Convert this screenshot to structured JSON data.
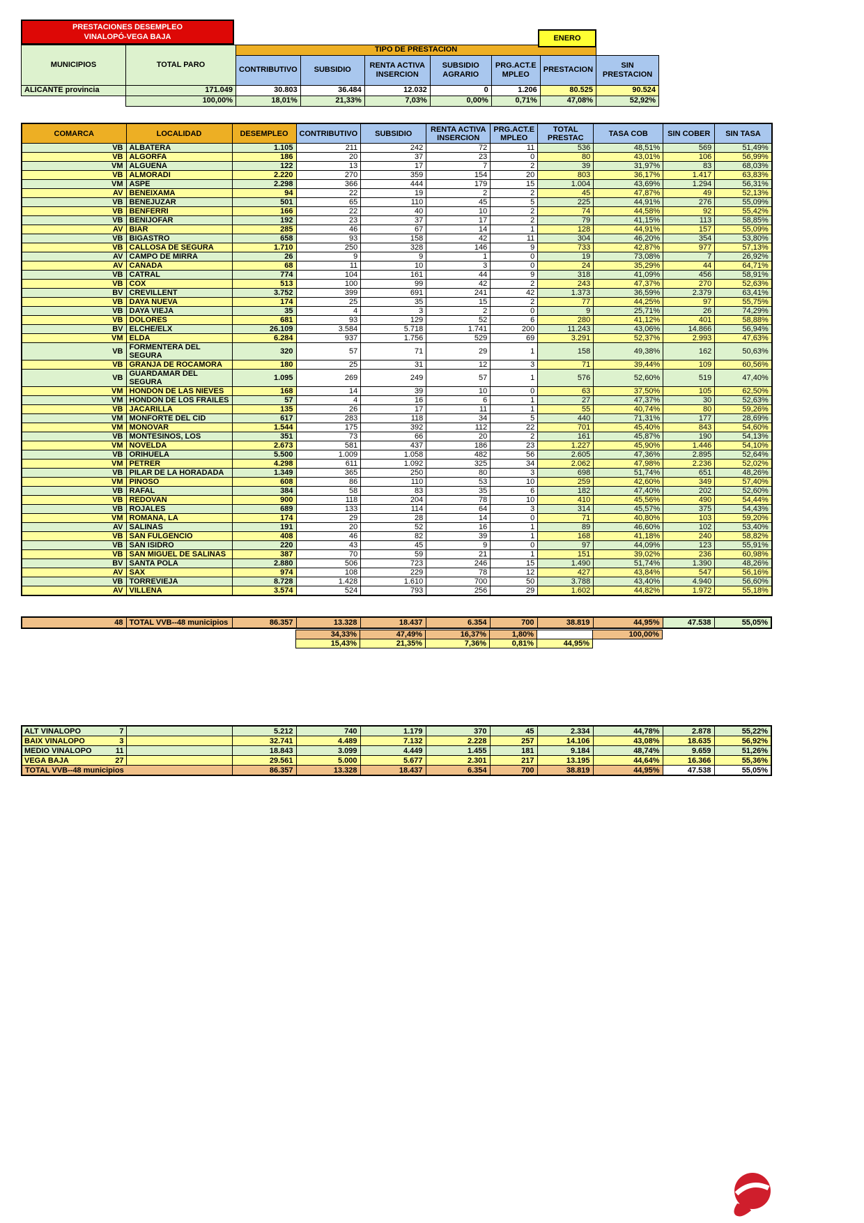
{
  "header": {
    "title_line1": "PRESTACIONES DESEMPLEO",
    "title_line2": "VINALOPÓ-VEGA BAJA",
    "month": "ENERO"
  },
  "province_table": {
    "col_municipios": "MUNICIPIOS",
    "col_total_paro": "TOTAL PARO",
    "band": "TIPO DE PRESTACION",
    "cols": [
      "CONTRIBUTIVO",
      "SUBSIDIO",
      "RENTA ACTIVA INSERCION",
      "SUBSIDIO AGRARIO",
      "PRG.ACT.E MPLEO",
      "PRESTACION",
      "SIN PRESTACION"
    ],
    "row_name": "ALICANTE provincia",
    "values": [
      "171.049",
      "30.803",
      "36.484",
      "12.032",
      "0",
      "1.206",
      "80.525",
      "90.524"
    ],
    "percents": [
      "100,00%",
      "18,01%",
      "21,33%",
      "7,03%",
      "0,00%",
      "0,71%",
      "47,08%",
      "52,92%"
    ]
  },
  "main_table": {
    "headers": [
      "COMARCA",
      "LOCALIDAD",
      "DESEMPLEO",
      "CONTRIBUTIVO",
      "SUBSIDIO",
      "RENTA ACTIVA INSERCION",
      "PRG.ACT.E MPLEO",
      "TOTAL PRESTAC",
      "TASA COB",
      "SIN COBER",
      "SIN TASA"
    ],
    "rows": [
      [
        "VB",
        "ALBATERA",
        "1.105",
        "211",
        "242",
        "72",
        "11",
        "536",
        "48,51%",
        "569",
        "51,49%"
      ],
      [
        "VB",
        "ALGORFA",
        "186",
        "20",
        "37",
        "23",
        "0",
        "80",
        "43,01%",
        "106",
        "56,99%"
      ],
      [
        "VM",
        "ALGUEÑA",
        "122",
        "13",
        "17",
        "7",
        "2",
        "39",
        "31,97%",
        "83",
        "68,03%"
      ],
      [
        "VB",
        "ALMORADI",
        "2.220",
        "270",
        "359",
        "154",
        "20",
        "803",
        "36,17%",
        "1.417",
        "63,83%"
      ],
      [
        "VM",
        "ASPE",
        "2.298",
        "366",
        "444",
        "179",
        "15",
        "1.004",
        "43,69%",
        "1.294",
        "56,31%"
      ],
      [
        "AV",
        "BENEIXAMA",
        "94",
        "22",
        "19",
        "2",
        "2",
        "45",
        "47,87%",
        "49",
        "52,13%"
      ],
      [
        "VB",
        "BENEJUZAR",
        "501",
        "65",
        "110",
        "45",
        "5",
        "225",
        "44,91%",
        "276",
        "55,09%"
      ],
      [
        "VB",
        "BENFERRI",
        "166",
        "22",
        "40",
        "10",
        "2",
        "74",
        "44,58%",
        "92",
        "55,42%"
      ],
      [
        "VB",
        "BENIJOFAR",
        "192",
        "23",
        "37",
        "17",
        "2",
        "79",
        "41,15%",
        "113",
        "58,85%"
      ],
      [
        "AV",
        "BIAR",
        "285",
        "46",
        "67",
        "14",
        "1",
        "128",
        "44,91%",
        "157",
        "55,09%"
      ],
      [
        "VB",
        "BIGASTRO",
        "658",
        "93",
        "158",
        "42",
        "11",
        "304",
        "46,20%",
        "354",
        "53,80%"
      ],
      [
        "VB",
        "CALLOSA DE SEGURA",
        "1.710",
        "250",
        "328",
        "146",
        "9",
        "733",
        "42,87%",
        "977",
        "57,13%"
      ],
      [
        "AV",
        "CAMPO DE MIRRA",
        "26",
        "9",
        "9",
        "1",
        "0",
        "19",
        "73,08%",
        "7",
        "26,92%"
      ],
      [
        "AV",
        "CAÑADA",
        "68",
        "11",
        "10",
        "3",
        "0",
        "24",
        "35,29%",
        "44",
        "64,71%"
      ],
      [
        "VB",
        "CATRAL",
        "774",
        "104",
        "161",
        "44",
        "9",
        "318",
        "41,09%",
        "456",
        "58,91%"
      ],
      [
        "VB",
        "COX",
        "513",
        "100",
        "99",
        "42",
        "2",
        "243",
        "47,37%",
        "270",
        "52,63%"
      ],
      [
        "BV",
        "CREVILLENT",
        "3.752",
        "399",
        "691",
        "241",
        "42",
        "1.373",
        "36,59%",
        "2.379",
        "63,41%"
      ],
      [
        "VB",
        "DAYA NUEVA",
        "174",
        "25",
        "35",
        "15",
        "2",
        "77",
        "44,25%",
        "97",
        "55,75%"
      ],
      [
        "VB",
        "DAYA VIEJA",
        "35",
        "4",
        "3",
        "2",
        "0",
        "9",
        "25,71%",
        "26",
        "74,29%"
      ],
      [
        "VB",
        "DOLORES",
        "681",
        "93",
        "129",
        "52",
        "6",
        "280",
        "41,12%",
        "401",
        "58,88%"
      ],
      [
        "BV",
        "ELCHE/ELX",
        "26.109",
        "3.584",
        "5.718",
        "1.741",
        "200",
        "11.243",
        "43,06%",
        "14.866",
        "56,94%"
      ],
      [
        "VM",
        "ELDA",
        "6.284",
        "937",
        "1.756",
        "529",
        "69",
        "3.291",
        "52,37%",
        "2.993",
        "47,63%"
      ],
      [
        "VB",
        "FORMENTERA DEL SEGURA",
        "320",
        "57",
        "71",
        "29",
        "1",
        "158",
        "49,38%",
        "162",
        "50,63%"
      ],
      [
        "VB",
        "GRANJA DE ROCAMORA",
        "180",
        "25",
        "31",
        "12",
        "3",
        "71",
        "39,44%",
        "109",
        "60,56%"
      ],
      [
        "VB",
        "GUARDAMAR DEL SEGURA",
        "1.095",
        "269",
        "249",
        "57",
        "1",
        "576",
        "52,60%",
        "519",
        "47,40%"
      ],
      [
        "VM",
        "HONDÓN DE LAS NIEVES",
        "168",
        "14",
        "39",
        "10",
        "0",
        "63",
        "37,50%",
        "105",
        "62,50%"
      ],
      [
        "VM",
        "HONDON DE LOS FRAILES",
        "57",
        "4",
        "16",
        "6",
        "1",
        "27",
        "47,37%",
        "30",
        "52,63%"
      ],
      [
        "VB",
        "JACARILLA",
        "135",
        "26",
        "17",
        "11",
        "1",
        "55",
        "40,74%",
        "80",
        "59,26%"
      ],
      [
        "VM",
        "MONFORTE DEL CID",
        "617",
        "283",
        "118",
        "34",
        "5",
        "440",
        "71,31%",
        "177",
        "28,69%"
      ],
      [
        "VM",
        "MONOVAR",
        "1.544",
        "175",
        "392",
        "112",
        "22",
        "701",
        "45,40%",
        "843",
        "54,60%"
      ],
      [
        "VB",
        "MONTESINOS, LOS",
        "351",
        "73",
        "66",
        "20",
        "2",
        "161",
        "45,87%",
        "190",
        "54,13%"
      ],
      [
        "VM",
        "NOVELDA",
        "2.673",
        "581",
        "437",
        "186",
        "23",
        "1.227",
        "45,90%",
        "1.446",
        "54,10%"
      ],
      [
        "VB",
        "ORIHUELA",
        "5.500",
        "1.009",
        "1.058",
        "482",
        "56",
        "2.605",
        "47,36%",
        "2.895",
        "52,64%"
      ],
      [
        "VM",
        "PETRER",
        "4.298",
        "611",
        "1.092",
        "325",
        "34",
        "2.062",
        "47,98%",
        "2.236",
        "52,02%"
      ],
      [
        "VB",
        "PILAR DE LA HORADADA",
        "1.349",
        "365",
        "250",
        "80",
        "3",
        "698",
        "51,74%",
        "651",
        "48,26%"
      ],
      [
        "VM",
        "PINOSO",
        "608",
        "86",
        "110",
        "53",
        "10",
        "259",
        "42,60%",
        "349",
        "57,40%"
      ],
      [
        "VB",
        "RAFAL",
        "384",
        "58",
        "83",
        "35",
        "6",
        "182",
        "47,40%",
        "202",
        "52,60%"
      ],
      [
        "VB",
        "REDOVAN",
        "900",
        "118",
        "204",
        "78",
        "10",
        "410",
        "45,56%",
        "490",
        "54,44%"
      ],
      [
        "VB",
        "ROJALES",
        "689",
        "133",
        "114",
        "64",
        "3",
        "314",
        "45,57%",
        "375",
        "54,43%"
      ],
      [
        "VM",
        "ROMANA, LA",
        "174",
        "29",
        "28",
        "14",
        "0",
        "71",
        "40,80%",
        "103",
        "59,20%"
      ],
      [
        "AV",
        "SALINAS",
        "191",
        "20",
        "52",
        "16",
        "1",
        "89",
        "46,60%",
        "102",
        "53,40%"
      ],
      [
        "VB",
        "SAN FULGENCIO",
        "408",
        "46",
        "82",
        "39",
        "1",
        "168",
        "41,18%",
        "240",
        "58,82%"
      ],
      [
        "VB",
        "SAN ISIDRO",
        "220",
        "43",
        "45",
        "9",
        "0",
        "97",
        "44,09%",
        "123",
        "55,91%"
      ],
      [
        "VB",
        "SAN MIGUEL DE SALINAS",
        "387",
        "70",
        "59",
        "21",
        "1",
        "151",
        "39,02%",
        "236",
        "60,98%"
      ],
      [
        "BV",
        "SANTA POLA",
        "2.880",
        "506",
        "723",
        "246",
        "15",
        "1.490",
        "51,74%",
        "1.390",
        "48,26%"
      ],
      [
        "AV",
        "SAX",
        "974",
        "108",
        "229",
        "78",
        "12",
        "427",
        "43,84%",
        "547",
        "56,16%"
      ],
      [
        "VB",
        "TORREVIEJA",
        "8.728",
        "1.428",
        "1.610",
        "700",
        "50",
        "3.788",
        "43,40%",
        "4.940",
        "56,60%"
      ],
      [
        "AV",
        "VILLENA",
        "3.574",
        "524",
        "793",
        "256",
        "29",
        "1.602",
        "44,82%",
        "1.972",
        "55,18%"
      ]
    ],
    "totals": {
      "count": "48",
      "label": "TOTAL VVB--48 municipios",
      "values": [
        "86.357",
        "13.328",
        "18.437",
        "6.354",
        "700",
        "38.819",
        "44,95%",
        "47.538",
        "55,05%"
      ]
    },
    "pct_row1": [
      "34,33%",
      "47,49%",
      "16,37%",
      "1,80%",
      "",
      "100,00%"
    ],
    "pct_row2": [
      "15,43%",
      "21,35%",
      "7,36%",
      "0,81%",
      "44,95%"
    ]
  },
  "summary_table": {
    "rows": [
      [
        "ALT VINALOPO",
        "7",
        "5.212",
        "740",
        "1.179",
        "370",
        "45",
        "2.334",
        "44,78%",
        "2.878",
        "55,22%"
      ],
      [
        "BAIX VINALOPO",
        "3",
        "32.741",
        "4.489",
        "7.132",
        "2.228",
        "257",
        "14.106",
        "43,08%",
        "18.635",
        "56,92%"
      ],
      [
        "MEDIO VINALOPO",
        "11",
        "18.843",
        "3.099",
        "4.449",
        "1.455",
        "181",
        "9.184",
        "48,74%",
        "9.659",
        "51,26%"
      ],
      [
        "VEGA BAJA",
        "27",
        "29.561",
        "5.000",
        "5.677",
        "2.301",
        "217",
        "13.195",
        "44,64%",
        "16.366",
        "55,36%"
      ]
    ],
    "total": {
      "label": "TOTAL VVB--48 municipios",
      "values": [
        "86.357",
        "13.328",
        "18.437",
        "6.354",
        "700",
        "38.819",
        "44,95%",
        "47.538",
        "55,05%"
      ]
    }
  },
  "colors": {
    "title_bg": "#dd0806",
    "month_bg": "#ffff33",
    "band_bg": "#edaf24",
    "header_blue": "#a9c7ee",
    "row_green": "#ddf2ce",
    "row_yellow": "#ffff9e",
    "totals_tan": "#f0c088",
    "grid": "#000000"
  }
}
